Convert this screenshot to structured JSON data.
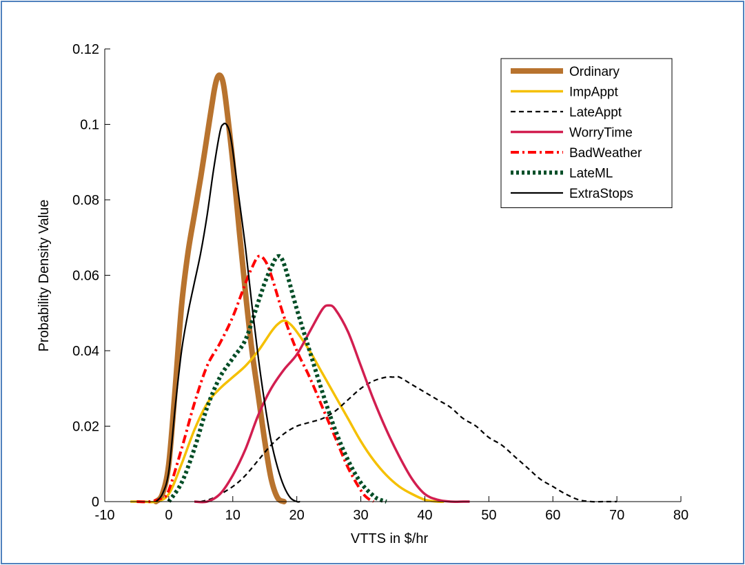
{
  "chart_data": {
    "type": "line",
    "title": "",
    "xlabel": "VTTS in $/hr",
    "ylabel": "Probability Density Value",
    "xlim": [
      -10,
      80
    ],
    "ylim": [
      0,
      0.12
    ],
    "xticks": [
      -10,
      0,
      10,
      20,
      30,
      40,
      50,
      60,
      70,
      80
    ],
    "yticks": [
      0,
      0.02,
      0.04,
      0.06,
      0.08,
      0.1,
      0.12
    ],
    "xtick_labels": [
      "-10",
      "0",
      "10",
      "20",
      "30",
      "40",
      "50",
      "60",
      "70",
      "80"
    ],
    "ytick_labels": [
      "0",
      "0.02",
      "0.04",
      "0.06",
      "0.08",
      "0.1",
      "0.12"
    ],
    "grid": false,
    "legend_position": "top-right",
    "series": [
      {
        "name": "Ordinary",
        "color": "#b8732e",
        "style": "solid",
        "x": [
          -2,
          -1,
          0,
          1,
          2,
          3,
          4,
          5,
          6,
          7,
          7.5,
          8,
          8.5,
          9,
          10,
          11,
          12,
          13,
          14,
          15,
          16,
          17,
          18
        ],
        "y": [
          0,
          0.002,
          0.01,
          0.03,
          0.052,
          0.066,
          0.076,
          0.086,
          0.097,
          0.108,
          0.112,
          0.113,
          0.111,
          0.105,
          0.09,
          0.072,
          0.055,
          0.04,
          0.028,
          0.016,
          0.006,
          0.001,
          0
        ]
      },
      {
        "name": "ImpAppt",
        "color": "#f5c000",
        "style": "solid",
        "x": [
          -6,
          -4,
          -2,
          0,
          2,
          4,
          6,
          8,
          10,
          12,
          14,
          16,
          17,
          18,
          19,
          20,
          22,
          24,
          26,
          28,
          30,
          32,
          34,
          36,
          38,
          40,
          42,
          43
        ],
        "y": [
          0,
          0,
          0,
          0.002,
          0.01,
          0.019,
          0.026,
          0.03,
          0.033,
          0.036,
          0.04,
          0.045,
          0.047,
          0.048,
          0.047,
          0.045,
          0.04,
          0.034,
          0.028,
          0.022,
          0.016,
          0.011,
          0.007,
          0.004,
          0.002,
          0.0005,
          0,
          0
        ]
      },
      {
        "name": "LateAppt",
        "color": "#000000",
        "style": "dashed",
        "x": [
          5,
          7,
          10,
          12,
          14,
          16,
          18,
          20,
          22,
          24,
          26,
          28,
          30,
          32,
          34,
          35,
          36,
          38,
          40,
          42,
          44,
          46,
          48,
          50,
          52,
          54,
          56,
          58,
          60,
          62,
          64,
          66,
          68,
          70
        ],
        "y": [
          0,
          0.001,
          0.004,
          0.007,
          0.011,
          0.015,
          0.018,
          0.02,
          0.021,
          0.022,
          0.024,
          0.027,
          0.03,
          0.032,
          0.033,
          0.033,
          0.033,
          0.031,
          0.029,
          0.027,
          0.025,
          0.022,
          0.02,
          0.017,
          0.015,
          0.012,
          0.009,
          0.006,
          0.004,
          0.002,
          0.0005,
          0,
          0,
          0
        ]
      },
      {
        "name": "WorryTime",
        "color": "#d21e50",
        "style": "solid",
        "x": [
          4,
          6,
          8,
          10,
          12,
          14,
          16,
          18,
          20,
          22,
          24,
          25,
          26,
          28,
          30,
          32,
          34,
          36,
          38,
          40,
          42,
          44,
          46,
          47
        ],
        "y": [
          0,
          0,
          0.002,
          0.007,
          0.014,
          0.023,
          0.03,
          0.035,
          0.039,
          0.045,
          0.051,
          0.052,
          0.051,
          0.045,
          0.036,
          0.027,
          0.019,
          0.012,
          0.006,
          0.002,
          0.0005,
          0,
          0,
          0
        ]
      },
      {
        "name": "BadWeather",
        "color": "#ff0000",
        "style": "dashdot",
        "x": [
          -5,
          -3,
          -1,
          0,
          2,
          4,
          6,
          8,
          10,
          12,
          13,
          14,
          15,
          16,
          18,
          20,
          22,
          24,
          26,
          28,
          30,
          31,
          32
        ],
        "y": [
          0,
          0,
          0.001,
          0.003,
          0.014,
          0.026,
          0.036,
          0.042,
          0.049,
          0.058,
          0.062,
          0.065,
          0.064,
          0.06,
          0.049,
          0.04,
          0.033,
          0.025,
          0.017,
          0.009,
          0.003,
          0.001,
          0
        ]
      },
      {
        "name": "LateML",
        "color": "#004d26",
        "style": "dotted",
        "x": [
          0,
          2,
          4,
          6,
          8,
          10,
          12,
          14,
          15,
          16,
          17,
          18,
          20,
          22,
          24,
          26,
          28,
          30,
          32,
          33,
          34
        ],
        "y": [
          0,
          0.005,
          0.014,
          0.025,
          0.033,
          0.038,
          0.043,
          0.053,
          0.058,
          0.062,
          0.065,
          0.063,
          0.051,
          0.04,
          0.029,
          0.019,
          0.011,
          0.005,
          0.0015,
          0.0005,
          0
        ]
      },
      {
        "name": "ExtraStops",
        "color": "#000000",
        "style": "solid",
        "x": [
          -2,
          -1,
          0,
          1,
          2,
          3,
          4,
          5,
          6,
          7,
          8,
          8.5,
          9,
          9.5,
          10,
          11,
          12,
          13,
          14,
          15,
          16,
          17,
          18,
          19,
          20,
          20.5
        ],
        "y": [
          0,
          0.002,
          0.008,
          0.025,
          0.04,
          0.05,
          0.058,
          0.066,
          0.076,
          0.088,
          0.098,
          0.1,
          0.1,
          0.098,
          0.093,
          0.08,
          0.067,
          0.052,
          0.038,
          0.026,
          0.016,
          0.009,
          0.004,
          0.001,
          0,
          0
        ]
      }
    ]
  }
}
